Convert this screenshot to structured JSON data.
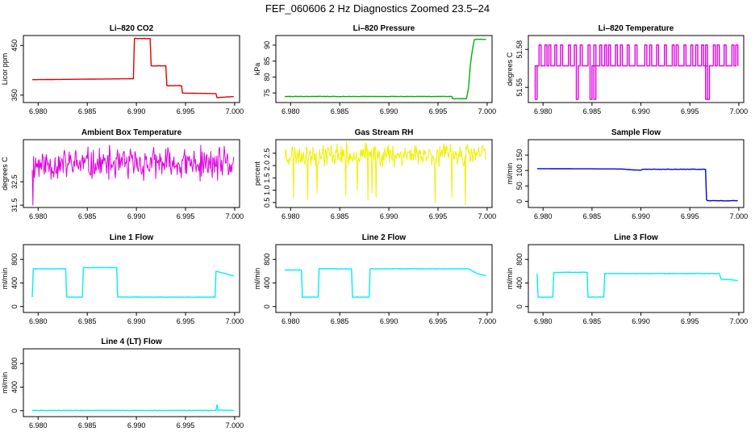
{
  "figure": {
    "title": "FEF_060606  2 Hz Diagnostics Zoomed 23.5–24"
  },
  "chart_data": [
    {
      "type": "line",
      "title": "Li–820 CO2",
      "ylabel": "Licor ppm",
      "color": "#e00000",
      "xlim": [
        6.9785,
        7.0005
      ],
      "ylim": [
        335,
        470
      ],
      "x_ticks": [
        6.98,
        6.985,
        6.99,
        6.995,
        7.0
      ],
      "x_tick_labels": [
        "6.980",
        "6.985",
        "6.990",
        "6.995",
        "7.000"
      ],
      "y_ticks": [
        350,
        450
      ],
      "y_tick_labels": [
        "350",
        "450"
      ],
      "x": [
        6.9794,
        6.9897,
        6.9898,
        6.9914,
        6.9915,
        6.993,
        6.9931,
        6.9946,
        6.9947,
        6.9981,
        6.9982,
        6.9999
      ],
      "y": [
        381,
        383,
        464,
        464,
        409,
        409,
        369,
        369,
        354,
        353,
        345,
        347
      ]
    },
    {
      "type": "line",
      "title": "Li–820 Pressure",
      "ylabel": "kPa",
      "color": "#00b000",
      "xlim": [
        6.9785,
        7.0005
      ],
      "ylim": [
        72,
        93
      ],
      "x_ticks": [
        6.98,
        6.985,
        6.99,
        6.995,
        7.0
      ],
      "x_tick_labels": [
        "6.980",
        "6.985",
        "6.990",
        "6.995",
        "7.000"
      ],
      "y_ticks": [
        75,
        80,
        85,
        90
      ],
      "y_tick_labels": [
        "75",
        "80",
        "85",
        "90"
      ],
      "x": [
        6.9794,
        6.9964,
        6.9965,
        6.9979,
        6.9981,
        6.9983,
        6.9985,
        6.9987,
        6.9999
      ],
      "y": [
        73.9,
        73.9,
        73.2,
        73.2,
        76.5,
        84.0,
        88.5,
        91.8,
        91.8
      ]
    },
    {
      "type": "line",
      "title": "Li–820 Temperature",
      "ylabel": "degrees C",
      "color": "#e000e0",
      "xlim": [
        6.9785,
        7.0005
      ],
      "ylim": [
        51.538,
        51.591
      ],
      "x_ticks": [
        6.98,
        6.985,
        6.99,
        6.995,
        7.0
      ],
      "x_tick_labels": [
        "6.980",
        "6.985",
        "6.990",
        "6.995",
        "7.000"
      ],
      "y_ticks": [
        51.55,
        51.58
      ],
      "y_tick_labels": [
        "51.55",
        "51.58"
      ],
      "base": 51.567,
      "high": 51.5835,
      "low": 51.5405,
      "spikes_high": [
        6.9796,
        6.9802,
        6.9806,
        6.9812,
        6.9818,
        6.9826,
        6.9832,
        6.9838,
        6.9846,
        6.9852,
        6.9858,
        6.9863,
        6.9867,
        6.9874,
        6.9879,
        6.9886,
        6.9894,
        6.9904,
        6.9909,
        6.9916,
        6.9924,
        6.9932,
        6.9936,
        6.9944,
        6.9951,
        6.9956,
        6.9962,
        6.9966,
        6.9974,
        6.9978,
        6.9985,
        6.9993,
        6.9997
      ],
      "spikes_low": [
        6.9792,
        6.9834,
        6.9848,
        6.9852,
        6.9966,
        6.9968
      ]
    },
    {
      "type": "line",
      "title": "Ambient Box Temperature",
      "ylabel": "degrees C",
      "color": "#e000e0",
      "xlim": [
        6.9785,
        7.0005
      ],
      "ylim": [
        31.4,
        34.3
      ],
      "x_ticks": [
        6.98,
        6.985,
        6.99,
        6.995,
        7.0
      ],
      "x_tick_labels": [
        "6.980",
        "6.985",
        "6.990",
        "6.995",
        "7.000"
      ],
      "y_ticks": [
        31.5,
        32.5
      ],
      "y_tick_labels": [
        "31.5",
        "32.5"
      ],
      "noise": {
        "x0": 6.9794,
        "x1": 6.9999,
        "n": 300,
        "mean": 33.25,
        "amp": 0.85,
        "seed": 11,
        "extremes": [
          [
            6.9795,
            31.5
          ]
        ]
      }
    },
    {
      "type": "line",
      "title": "Gas Stream RH",
      "ylabel": "percent",
      "color": "#f0f000",
      "xlim": [
        6.9785,
        7.0005
      ],
      "ylim": [
        0.3,
        3.05
      ],
      "x_ticks": [
        6.98,
        6.985,
        6.99,
        6.995,
        7.0
      ],
      "x_tick_labels": [
        "6.980",
        "6.985",
        "6.990",
        "6.995",
        "7.000"
      ],
      "y_ticks": [
        0.5,
        1.0,
        1.5,
        2.0,
        2.5
      ],
      "y_tick_labels": [
        "0.5",
        "1.0",
        "1.5",
        "2.0",
        "2.5"
      ],
      "noise": {
        "x0": 6.9794,
        "x1": 6.9999,
        "n": 300,
        "mean": 2.45,
        "amp": 0.55,
        "seed": 23,
        "extremes": [
          [
            6.9803,
            0.7
          ],
          [
            6.9817,
            0.6
          ],
          [
            6.9827,
            0.9
          ],
          [
            6.9856,
            0.8
          ],
          [
            6.9868,
            1.0
          ],
          [
            6.9879,
            0.6
          ],
          [
            6.9883,
            0.9
          ],
          [
            6.9887,
            0.7
          ],
          [
            6.9947,
            0.5
          ],
          [
            6.9964,
            0.7
          ],
          [
            6.9978,
            0.4
          ]
        ]
      }
    },
    {
      "type": "line",
      "title": "Sample Flow",
      "ylabel": "ml/min",
      "color": "#0000e0",
      "xlim": [
        6.9785,
        7.0005
      ],
      "ylim": [
        -20,
        200
      ],
      "x_ticks": [
        6.98,
        6.985,
        6.99,
        6.995,
        7.0
      ],
      "x_tick_labels": [
        "6.980",
        "6.985",
        "6.990",
        "6.995",
        "7.000"
      ],
      "y_ticks": [
        0,
        50,
        100,
        150
      ],
      "y_tick_labels": [
        "0",
        "50",
        "100",
        "150"
      ],
      "x": [
        6.9794,
        6.988,
        6.9892,
        6.99,
        6.9902,
        6.9966,
        6.9967,
        6.9968,
        6.9999
      ],
      "y": [
        106,
        105,
        102,
        101,
        104,
        104,
        5,
        2,
        2
      ]
    },
    {
      "type": "line",
      "title": "Line 1 Flow",
      "ylabel": "ml/min",
      "color": "#00f0f0",
      "xlim": [
        6.9785,
        7.0005
      ],
      "ylim": [
        -100,
        1050
      ],
      "x_ticks": [
        6.98,
        6.985,
        6.99,
        6.995,
        7.0
      ],
      "x_tick_labels": [
        "6.980",
        "6.985",
        "6.990",
        "6.995",
        "7.000"
      ],
      "y_ticks": [
        0,
        400,
        800
      ],
      "y_tick_labels": [
        "0",
        "400",
        "800"
      ],
      "x": [
        6.9794,
        6.9795,
        6.9828,
        6.9829,
        6.9845,
        6.9846,
        6.988,
        6.9881,
        6.998,
        6.9981,
        6.999,
        6.9999
      ],
      "y": [
        160,
        640,
        640,
        160,
        160,
        660,
        660,
        160,
        160,
        600,
        560,
        520
      ]
    },
    {
      "type": "line",
      "title": "Line 2 Flow",
      "ylabel": "ml/min",
      "color": "#00f0f0",
      "xlim": [
        6.9785,
        7.0005
      ],
      "ylim": [
        -100,
        1050
      ],
      "x_ticks": [
        6.98,
        6.985,
        6.99,
        6.995,
        7.0
      ],
      "x_tick_labels": [
        "6.980",
        "6.985",
        "6.990",
        "6.995",
        "7.000"
      ],
      "y_ticks": [
        0,
        400,
        800
      ],
      "y_tick_labels": [
        "0",
        "400",
        "800"
      ],
      "x": [
        6.9794,
        6.9811,
        6.9812,
        6.9828,
        6.9829,
        6.9862,
        6.9863,
        6.988,
        6.9881,
        6.9981,
        6.999,
        6.9999
      ],
      "y": [
        620,
        620,
        160,
        160,
        640,
        640,
        160,
        160,
        640,
        640,
        560,
        520
      ]
    },
    {
      "type": "line",
      "title": "Line 3 Flow",
      "ylabel": "ml/min",
      "color": "#00f0f0",
      "xlim": [
        6.9785,
        7.0005
      ],
      "ylim": [
        -100,
        1050
      ],
      "x_ticks": [
        6.98,
        6.985,
        6.99,
        6.995,
        7.0
      ],
      "x_tick_labels": [
        "6.980",
        "6.985",
        "6.990",
        "6.995",
        "7.000"
      ],
      "y_ticks": [
        0,
        400,
        800
      ],
      "y_tick_labels": [
        "0",
        "400",
        "800"
      ],
      "x": [
        6.9794,
        6.9795,
        6.981,
        6.9811,
        6.9845,
        6.9846,
        6.9862,
        6.9863,
        6.998,
        6.9982,
        6.999,
        6.9999
      ],
      "y": [
        560,
        160,
        160,
        580,
        580,
        160,
        160,
        560,
        560,
        460,
        460,
        440
      ]
    },
    {
      "type": "line",
      "title": "Line 4 (LT) Flow",
      "ylabel": "ml/min",
      "color": "#00f0f0",
      "xlim": [
        6.9785,
        7.0005
      ],
      "ylim": [
        -100,
        1050
      ],
      "x_ticks": [
        6.98,
        6.985,
        6.99,
        6.995,
        7.0
      ],
      "x_tick_labels": [
        "6.980",
        "6.985",
        "6.990",
        "6.995",
        "7.000"
      ],
      "y_ticks": [
        0,
        400,
        800
      ],
      "y_tick_labels": [
        "0",
        "400",
        "800"
      ],
      "x": [
        6.9794,
        6.9981,
        6.9982,
        6.9983,
        6.9999
      ],
      "y": [
        5,
        5,
        100,
        10,
        5
      ]
    }
  ]
}
